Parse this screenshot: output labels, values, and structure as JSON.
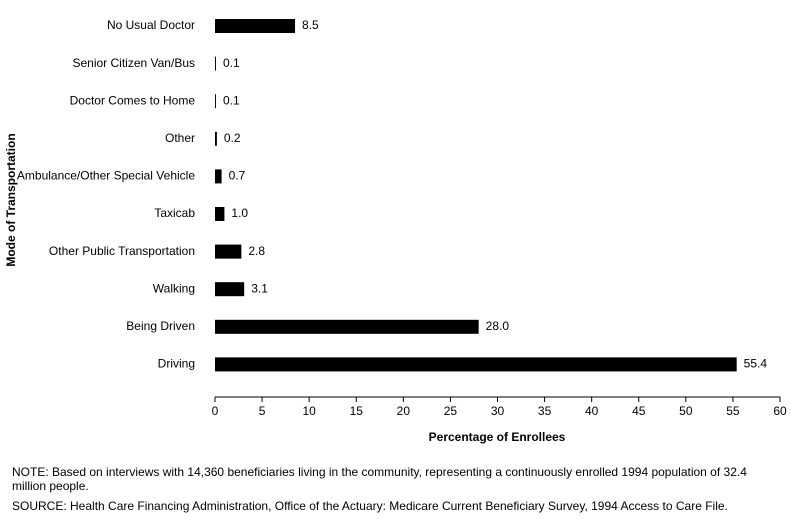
{
  "chart_data": {
    "type": "hbar",
    "categories": [
      "No Usual Doctor",
      "Senior Citizen Van/Bus",
      "Doctor Comes to Home",
      "Other",
      "Ambulance/Other Special Vehicle",
      "Taxicab",
      "Other Public Transportation",
      "Walking",
      "Being Driven",
      "Driving"
    ],
    "values": [
      8.5,
      0.1,
      0.1,
      0.2,
      0.7,
      1.0,
      2.8,
      3.1,
      28.0,
      55.4
    ],
    "value_labels": [
      "8.5",
      "0.1",
      "0.1",
      "0.2",
      "0.7",
      "1.0",
      "2.8",
      "3.1",
      "28.0",
      "55.4"
    ],
    "color": "#000000",
    "xlim": [
      0,
      60
    ],
    "xticks": [
      0,
      5,
      10,
      15,
      20,
      25,
      30,
      35,
      40,
      45,
      50,
      55,
      60
    ],
    "xlabel": "Percentage of Enrollees",
    "ylabel": "Mode of Transportation",
    "note": "NOTE: Based on interviews with 14,360 beneficiaries living in the community, representing a continuously enrolled 1994 population of 32.4 million people.",
    "source": "SOURCE: Health Care Financing Administration, Office of the Actuary: Medicare Current Beneficiary Survey, 1994 Access to Care File."
  }
}
